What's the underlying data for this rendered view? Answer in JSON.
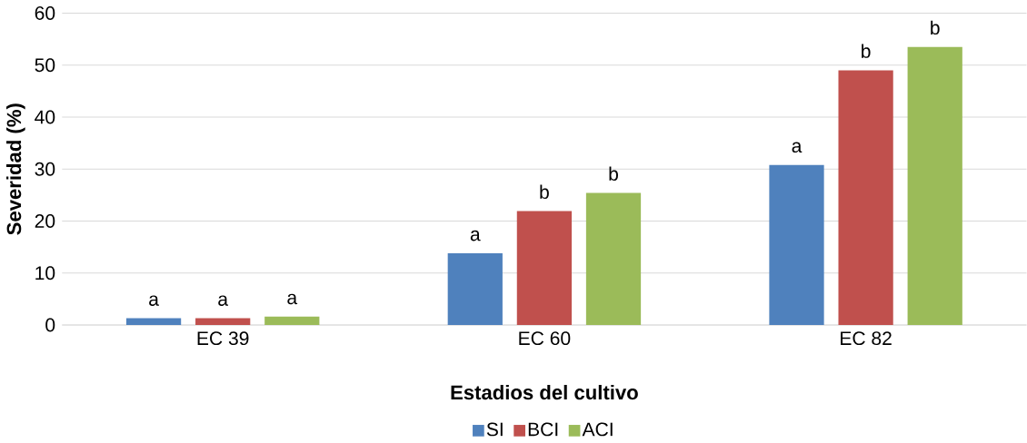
{
  "chart_data": {
    "type": "bar",
    "xlabel": "Estadios del cultivo",
    "ylabel": "Severidad (%)",
    "categories": [
      "EC 39",
      "EC 60",
      "EC 82"
    ],
    "series": [
      {
        "name": "SI",
        "color": "#4f81bd",
        "values": [
          1.3,
          13.8,
          30.8
        ],
        "value_labels": [
          "a",
          "a",
          "a"
        ]
      },
      {
        "name": "BCI",
        "color": "#c0504d",
        "values": [
          1.3,
          21.9,
          49.0
        ],
        "value_labels": [
          "a",
          "b",
          "b"
        ]
      },
      {
        "name": "ACI",
        "color": "#9bbb59",
        "values": [
          1.6,
          25.4,
          53.5
        ],
        "value_labels": [
          "a",
          "b",
          "b"
        ]
      }
    ],
    "ylim": [
      0,
      60
    ],
    "yticks": [
      0,
      10,
      20,
      30,
      40,
      50,
      60
    ],
    "grid": "y",
    "legend": "bottom"
  }
}
